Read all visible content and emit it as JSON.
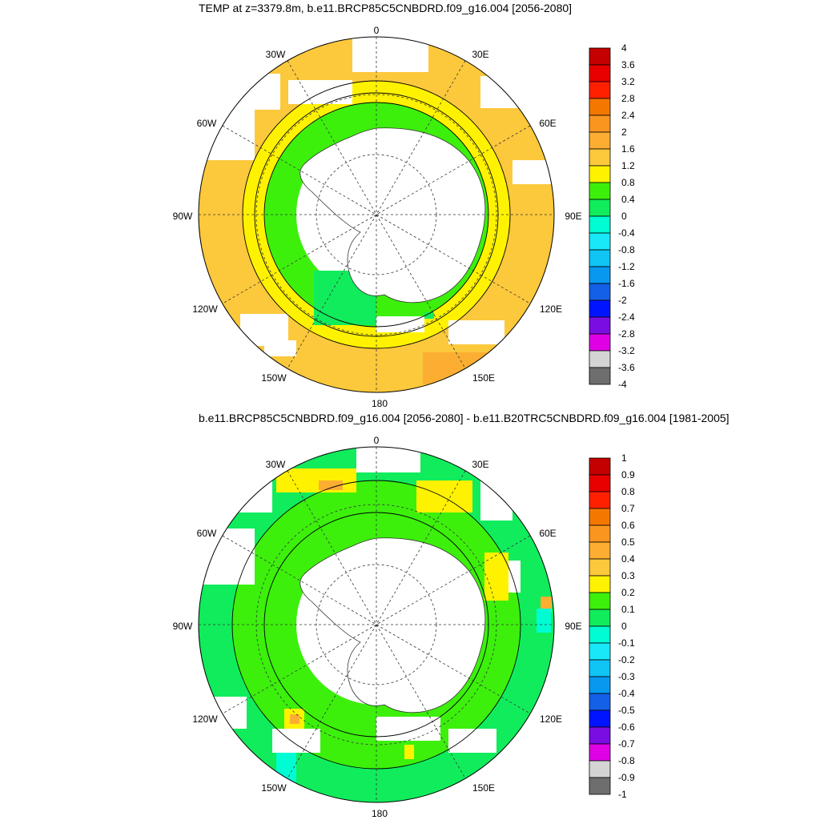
{
  "panels": [
    {
      "title": "TEMP at z=3379.8m, b.e11.BRCP85C5CNBDRD.f09_g16.004 [2056-2080]",
      "lon_labels": [
        "0",
        "30E",
        "60E",
        "90E",
        "120E",
        "150E",
        "180",
        "150W",
        "120W",
        "90W",
        "60W",
        "30W"
      ],
      "colorbar": {
        "labels": [
          "4",
          "3.6",
          "3.2",
          "2.8",
          "2.4",
          "2",
          "1.6",
          "1.2",
          "0.8",
          "0.4",
          "0",
          "-0.4",
          "-0.8",
          "-1.2",
          "-1.6",
          "-2",
          "-2.4",
          "-2.8",
          "-3.2",
          "-3.6",
          "-4"
        ],
        "colors": [
          "#c40000",
          "#e80000",
          "#ff2000",
          "#f47800",
          "#fa9620",
          "#fcae32",
          "#fcc83c",
          "#fff200",
          "#3cf00c",
          "#11ec5c",
          "#00fcd2",
          "#18e8f8",
          "#10c4f4",
          "#0898f0",
          "#1460e6",
          "#0014ff",
          "#7a0ee2",
          "#e000e6",
          "#d4d4d4",
          "#6e6e6e"
        ]
      }
    },
    {
      "title": "b.e11.BRCP85C5CNBDRD.f09_g16.004 [2056-2080] - b.e11.B20TRC5CNBDRD.f09_g16.004 [1981-2005]",
      "lon_labels": [
        "0",
        "30E",
        "60E",
        "90E",
        "120E",
        "150E",
        "180",
        "150W",
        "120W",
        "90W",
        "60W",
        "30W"
      ],
      "colorbar": {
        "labels": [
          "1",
          "0.9",
          "0.8",
          "0.7",
          "0.6",
          "0.5",
          "0.4",
          "0.3",
          "0.2",
          "0.1",
          "0",
          "-0.1",
          "-0.2",
          "-0.3",
          "-0.4",
          "-0.5",
          "-0.6",
          "-0.7",
          "-0.8",
          "-0.9",
          "-1"
        ],
        "colors": [
          "#c40000",
          "#e80000",
          "#ff2000",
          "#f47800",
          "#fa9620",
          "#fcae32",
          "#fcc83c",
          "#fff200",
          "#3cf00c",
          "#11ec5c",
          "#00fcd2",
          "#18e8f8",
          "#10c4f4",
          "#0898f0",
          "#1460e6",
          "#0014ff",
          "#7a0ee2",
          "#e000e6",
          "#d4d4d4",
          "#6e6e6e"
        ]
      }
    }
  ]
}
